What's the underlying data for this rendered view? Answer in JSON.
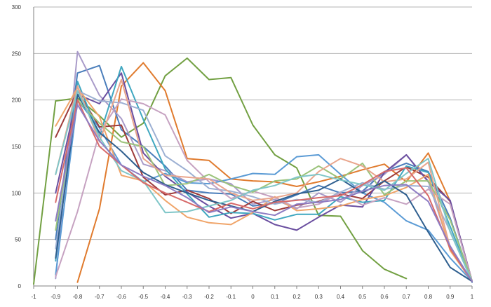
{
  "chart_data": {
    "type": "line",
    "title": "",
    "xlabel": "",
    "ylabel": "",
    "x": [
      "-1",
      "-0.9",
      "-0.8",
      "-0.7",
      "-0.6",
      "-0.5",
      "-0.4",
      "-0.3",
      "-0.2",
      "-0.1",
      "0",
      "0.1",
      "0.2",
      "0.3",
      "0.4",
      "0.5",
      "0.6",
      "0.7",
      "0.8",
      "0.9",
      "1"
    ],
    "xticks": [
      "-1",
      "-0.9",
      "-0.8",
      "-0.7",
      "-0.6",
      "-0.5",
      "-0.4",
      "-0.3",
      "-0.2",
      "-0.1",
      "0",
      "0.1",
      "0.2",
      "0.3",
      "0.4",
      "0.5",
      "0.6",
      "0.7",
      "0.8",
      "0.9",
      "1"
    ],
    "yticks": [
      "0",
      "50",
      "100",
      "150",
      "200",
      "250",
      "300"
    ],
    "ylim": [
      0,
      300
    ],
    "grid": "horizontal",
    "legend": "none",
    "series": [
      {
        "color": "#72A042",
        "values": [
          2,
          199,
          202,
          183,
          160,
          175,
          226,
          245,
          222,
          224,
          173,
          141,
          127,
          76,
          75,
          38,
          18,
          8,
          null,
          null,
          null
        ]
      },
      {
        "color": "#E07B2E",
        "values": [
          null,
          null,
          4,
          83,
          215,
          240,
          210,
          137,
          135,
          115,
          113,
          112,
          107,
          112,
          118,
          125,
          131,
          112,
          143,
          91,
          5
        ]
      },
      {
        "color": "#4A7EBB",
        "values": [
          null,
          50,
          229,
          237,
          168,
          150,
          129,
          103,
          100,
          99,
          86,
          89,
          98,
          108,
          100,
          102,
          123,
          132,
          123,
          73,
          4
        ]
      },
      {
        "color": "#A99BC9",
        "values": [
          null,
          8,
          252,
          205,
          180,
          131,
          124,
          112,
          115,
          110,
          88,
          93,
          83,
          100,
          90,
          108,
          120,
          141,
          113,
          40,
          5
        ]
      },
      {
        "color": "#5B9BD5",
        "values": [
          null,
          12,
          200,
          170,
          130,
          112,
          121,
          111,
          110,
          115,
          121,
          120,
          139,
          141,
          120,
          100,
          90,
          70,
          60,
          30,
          5
        ]
      },
      {
        "color": "#9E3B3B",
        "values": [
          null,
          160,
          210,
          171,
          173,
          117,
          98,
          103,
          94,
          78,
          91,
          81,
          87,
          91,
          99,
          94,
          113,
          128,
          117,
          91,
          5
        ]
      },
      {
        "color": "#6B4FA0",
        "values": [
          null,
          100,
          206,
          196,
          229,
          143,
          118,
          101,
          86,
          73,
          78,
          66,
          60,
          74,
          87,
          85,
          122,
          141,
          112,
          92,
          5
        ]
      },
      {
        "color": "#3FA7C0",
        "values": [
          null,
          27,
          220,
          161,
          236,
          179,
          126,
          99,
          74,
          79,
          78,
          71,
          77,
          77,
          96,
          90,
          92,
          129,
          122,
          64,
          5
        ]
      },
      {
        "color": "#F0A56A",
        "values": [
          null,
          172,
          213,
          182,
          119,
          113,
          92,
          74,
          68,
          66,
          79,
          96,
          81,
          83,
          86,
          93,
          97,
          106,
          120,
          38,
          5
        ]
      },
      {
        "color": "#9DB0D3",
        "values": [
          null,
          40,
          210,
          199,
          197,
          189,
          140,
          124,
          105,
          102,
          96,
          88,
          93,
          90,
          101,
          111,
          104,
          108,
          107,
          59,
          5
        ]
      },
      {
        "color": "#C6A2C1",
        "values": [
          null,
          10,
          80,
          165,
          201,
          196,
          184,
          135,
          112,
          94,
          102,
          95,
          84,
          88,
          100,
          87,
          95,
          88,
          104,
          88,
          5
        ]
      },
      {
        "color": "#9BC37B",
        "values": [
          null,
          60,
          200,
          175,
          155,
          150,
          108,
          110,
          120,
          108,
          101,
          113,
          115,
          129,
          115,
          132,
          98,
          113,
          113,
          71,
          5
        ]
      },
      {
        "color": "#E9A58C",
        "values": [
          null,
          120,
          215,
          155,
          222,
          137,
          119,
          117,
          115,
          100,
          92,
          95,
          100,
          123,
          137,
          129,
          112,
          115,
          133,
          41,
          5
        ]
      },
      {
        "color": "#2F5F8F",
        "values": [
          null,
          30,
          206,
          165,
          145,
          122,
          109,
          100,
          92,
          86,
          80,
          91,
          99,
          103,
          115,
          100,
          113,
          98,
          58,
          20,
          5
        ]
      },
      {
        "color": "#7FC6C8",
        "values": [
          null,
          120,
          210,
          160,
          124,
          113,
          79,
          80,
          86,
          92,
          103,
          108,
          117,
          120,
          114,
          109,
          103,
          121,
          137,
          58,
          5
        ]
      },
      {
        "color": "#D76A6A",
        "values": [
          null,
          90,
          200,
          150,
          130,
          111,
          100,
          90,
          80,
          89,
          83,
          90,
          92,
          95,
          97,
          109,
          123,
          127,
          97,
          40,
          5
        ]
      },
      {
        "color": "#8E7CC3",
        "values": [
          null,
          70,
          195,
          156,
          130,
          118,
          108,
          95,
          79,
          85,
          80,
          76,
          88,
          90,
          93,
          102,
          108,
          109,
          91,
          43,
          5
        ]
      }
    ]
  }
}
